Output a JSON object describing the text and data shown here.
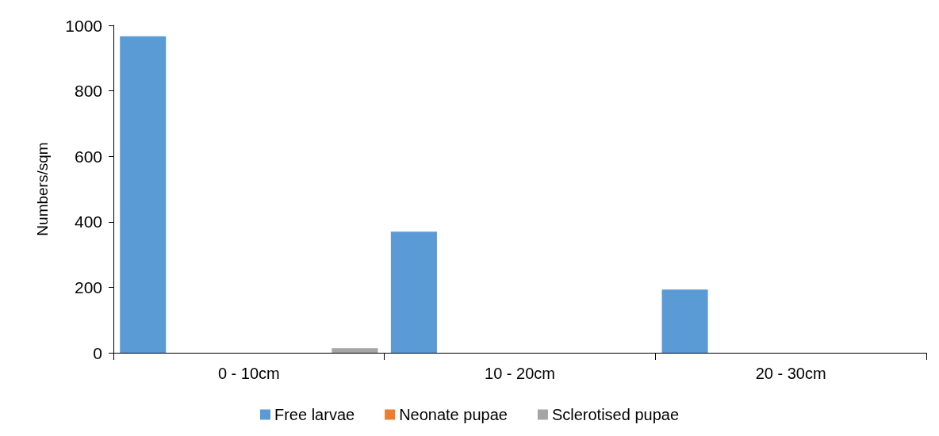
{
  "chart_data": {
    "type": "bar",
    "ylabel": "Numbers/sqm",
    "categories": [
      "0 - 10cm",
      "10 - 20cm",
      "20 - 30cm"
    ],
    "series": [
      {
        "name": "Free larvae",
        "color": "#5b9bd5",
        "values": [
          967,
          370,
          193
        ]
      },
      {
        "name": "Neonate pupae",
        "color": "#ed7d31",
        "values": [
          0,
          0,
          0
        ]
      },
      {
        "name": "Sclerotised pupae",
        "color": "#a5a5a5",
        "values": [
          14,
          0,
          0
        ]
      }
    ],
    "ylim": [
      0,
      1000
    ],
    "yticks": [
      0,
      200,
      400,
      600,
      800,
      1000
    ],
    "grid": false,
    "legend": "bottom"
  }
}
